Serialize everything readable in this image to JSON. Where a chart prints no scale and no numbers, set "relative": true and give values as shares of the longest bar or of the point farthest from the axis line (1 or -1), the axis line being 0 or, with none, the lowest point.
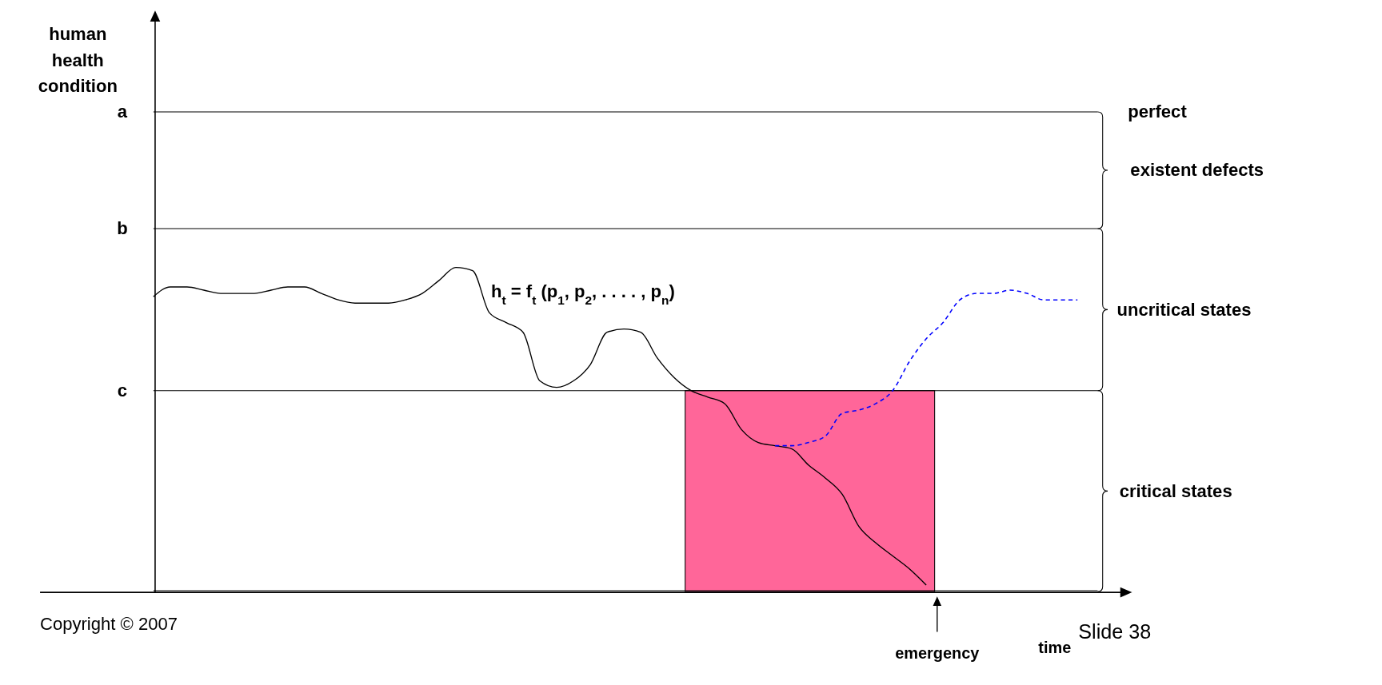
{
  "chart_data": {
    "type": "line",
    "relative": true,
    "xlabel": "time",
    "categories": [
      null,
      null,
      null,
      null,
      null,
      null,
      null,
      null,
      null,
      null,
      null,
      null,
      null,
      null,
      null,
      null,
      null,
      null,
      null,
      null,
      null,
      null,
      null,
      null,
      null,
      null,
      null,
      null,
      null,
      null,
      null,
      null,
      null,
      null,
      null,
      null,
      null,
      null,
      null,
      null,
      null,
      null,
      null,
      null,
      null,
      null,
      null,
      null,
      null,
      null,
      null,
      null,
      null,
      null,
      null,
      null
    ],
    "series": [
      {
        "color": "#000000",
        "line_style": "solid",
        "values": [
          0.91,
          0.94,
          0.94,
          0.93,
          0.92,
          0.92,
          0.92,
          0.93,
          0.94,
          0.94,
          0.92,
          0.9,
          0.89,
          0.89,
          0.89,
          0.9,
          0.92,
          0.96,
          1.0,
          0.99,
          0.86,
          0.83,
          0.8,
          0.65,
          0.63,
          0.65,
          0.7,
          0.8,
          0.81,
          0.8,
          0.72,
          0.66,
          0.62,
          0.6,
          0.58,
          0.5,
          0.46,
          0.45,
          0.44,
          0.39,
          0.35,
          0.3,
          0.2,
          0.15,
          0.11,
          0.07,
          0.02,
          null,
          null,
          null,
          null,
          null,
          null,
          null,
          null,
          null
        ]
      },
      {
        "color": "#0000ff",
        "line_style": "dashed",
        "values": [
          null,
          null,
          null,
          null,
          null,
          null,
          null,
          null,
          null,
          null,
          null,
          null,
          null,
          null,
          null,
          null,
          null,
          null,
          null,
          null,
          null,
          null,
          null,
          null,
          null,
          null,
          null,
          null,
          null,
          null,
          null,
          null,
          null,
          null,
          null,
          null,
          null,
          0.45,
          0.45,
          0.46,
          0.48,
          0.55,
          0.56,
          0.58,
          0.62,
          0.71,
          0.78,
          0.83,
          0.9,
          0.92,
          0.92,
          0.93,
          0.92,
          0.9,
          0.9,
          0.9
        ]
      }
    ],
    "ref_lines": [
      {
        "axis": "y",
        "value": 1.48,
        "label": "a"
      },
      {
        "axis": "y",
        "value": 1.12,
        "label": "b"
      },
      {
        "axis": "y",
        "value": 0.62,
        "label": "c"
      }
    ],
    "annotations": [
      "perfect",
      "existent defects",
      "uncritical states",
      "critical states",
      "h$_{t}$ = f$_{t}$ (p$_{1}$, p$_{2}$, . . . . , p$_{n}$)",
      "emergency",
      "Copyright © 2007",
      "Slide 38",
      "human health condition"
    ],
    "grid": false,
    "legend": false
  }
}
